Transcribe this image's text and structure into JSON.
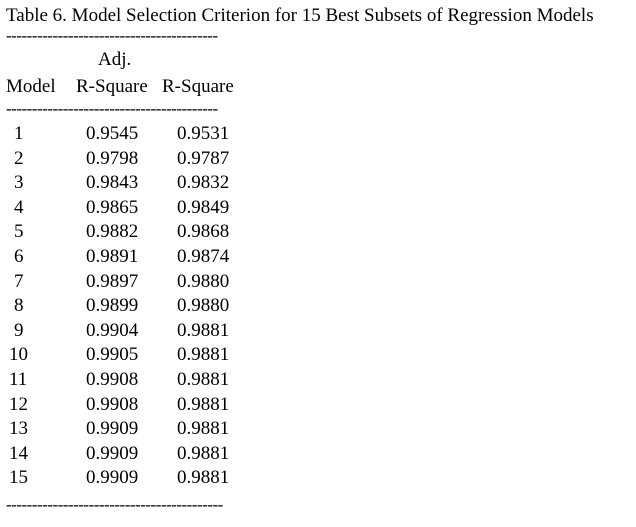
{
  "title": "Table 6. Model Selection Criterion for 15 Best Subsets of Regression Models",
  "rule": "-----------------------------------------",
  "rule_bottom": "------------------------------------------",
  "headers": {
    "adj": "Adj.",
    "model": "Model",
    "r_square_1": "R-Square",
    "r_square_2": "R-Square"
  },
  "rows": [
    {
      "model": "1",
      "c1": "0.9545",
      "c2": "0.9531"
    },
    {
      "model": "2",
      "c1": "0.9798",
      "c2": "0.9787"
    },
    {
      "model": "3",
      "c1": "0.9843",
      "c2": "0.9832"
    },
    {
      "model": "4",
      "c1": "0.9865",
      "c2": "0.9849"
    },
    {
      "model": "5",
      "c1": "0.9882",
      "c2": "0.9868"
    },
    {
      "model": "6",
      "c1": "0.9891",
      "c2": "0.9874"
    },
    {
      "model": "7",
      "c1": "0.9897",
      "c2": "0.9880"
    },
    {
      "model": "8",
      "c1": "0.9899",
      "c2": "0.9880"
    },
    {
      "model": "9",
      "c1": "0.9904",
      "c2": "0.9881"
    },
    {
      "model": "10",
      "c1": "0.9905",
      "c2": "0.9881"
    },
    {
      "model": "11",
      "c1": "0.9908",
      "c2": "0.9881"
    },
    {
      "model": "12",
      "c1": "0.9908",
      "c2": "0.9881"
    },
    {
      "model": "13",
      "c1": "0.9909",
      "c2": "0.9881"
    },
    {
      "model": "14",
      "c1": "0.9909",
      "c2": "0.9881"
    },
    {
      "model": "15",
      "c1": "0.9909",
      "c2": "0.9881"
    }
  ]
}
